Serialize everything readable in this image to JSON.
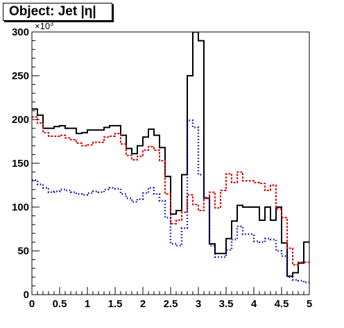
{
  "title": "Object: Jet |η|",
  "chart_data": {
    "type": "line",
    "title": "Object: Jet |η|",
    "xlabel": "",
    "ylabel": "",
    "y_multiplier_label": "×10³",
    "xlim": [
      0,
      5
    ],
    "ylim": [
      0,
      300
    ],
    "x_ticks": [
      0,
      0.5,
      1,
      1.5,
      2,
      2.5,
      3,
      3.5,
      4,
      4.5,
      5
    ],
    "x_tick_labels": [
      "0",
      "0.5",
      "1",
      "1.5",
      "2",
      "2.5",
      "3",
      "3.5",
      "4",
      "4.5",
      "5"
    ],
    "y_ticks": [
      0,
      50,
      100,
      150,
      200,
      250,
      300
    ],
    "y_tick_labels": [
      "0",
      "50",
      "100",
      "150",
      "200",
      "250",
      "300"
    ],
    "bin_edges": [
      0,
      0.1,
      0.2,
      0.3,
      0.4,
      0.5,
      0.6,
      0.7,
      0.8,
      0.9,
      1.0,
      1.1,
      1.2,
      1.3,
      1.4,
      1.5,
      1.6,
      1.7,
      1.8,
      1.9,
      2.0,
      2.1,
      2.2,
      2.3,
      2.4,
      2.5,
      2.6,
      2.7,
      2.8,
      2.9,
      3.0,
      3.1,
      3.2,
      3.3,
      3.4,
      3.5,
      3.6,
      3.7,
      3.8,
      3.9,
      4.0,
      4.1,
      4.2,
      4.3,
      4.4,
      4.5,
      4.6,
      4.7,
      4.8,
      4.9,
      5.0
    ],
    "series": [
      {
        "style": "solid",
        "color": "#000000",
        "values": [
          212,
          205,
          190,
          190,
          192,
          193,
          190,
          190,
          184,
          185,
          188,
          188,
          188,
          191,
          193,
          193,
          182,
          167,
          161,
          170,
          180,
          189,
          182,
          168,
          135,
          92,
          96,
          137,
          250,
          300,
          290,
          110,
          58,
          47,
          47,
          64,
          84,
          102,
          100,
          100,
          100,
          85,
          100,
          85,
          100,
          59,
          21,
          25,
          36,
          60
        ]
      },
      {
        "style": "dashed",
        "color": "#dd0000",
        "values": [
          203,
          196,
          185,
          181,
          181,
          182,
          179,
          177,
          173,
          170,
          171,
          174,
          174,
          180,
          181,
          184,
          172,
          159,
          154,
          158,
          165,
          169,
          165,
          153,
          115,
          81,
          85,
          94,
          114,
          103,
          96,
          110,
          117,
          99,
          119,
          138,
          128,
          140,
          130,
          130,
          128,
          127,
          119,
          125,
          98,
          88,
          53,
          34,
          37,
          37
        ]
      },
      {
        "style": "dotted",
        "color": "#0000aa",
        "values": [
          131,
          126,
          122,
          117,
          118,
          120,
          119,
          117,
          115,
          114,
          116,
          118,
          117,
          120,
          122,
          121,
          115,
          110,
          106,
          109,
          116,
          122,
          115,
          107,
          88,
          58,
          56,
          76,
          199,
          191,
          137,
          111,
          56,
          43,
          43,
          51,
          63,
          78,
          69,
          69,
          61,
          60,
          64,
          63,
          50,
          44,
          20,
          17,
          16,
          14
        ]
      }
    ]
  }
}
